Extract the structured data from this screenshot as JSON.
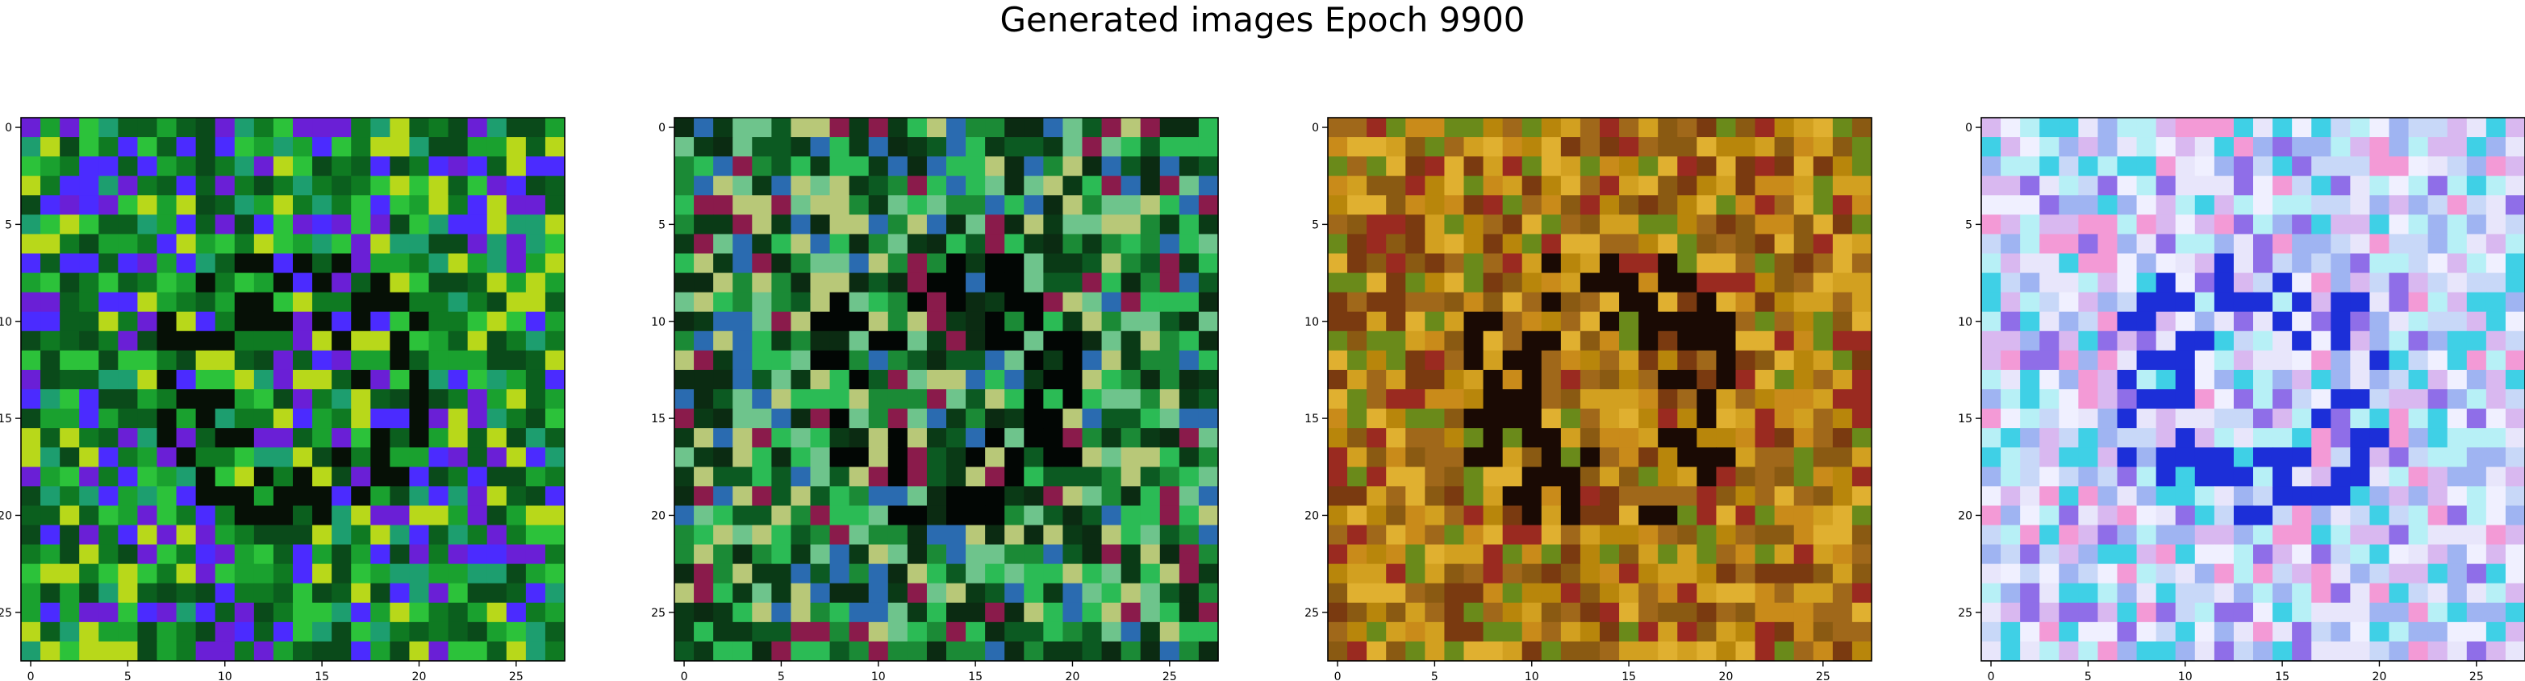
{
  "title": "Generated images Epoch 9900",
  "grid": {
    "rows": 28,
    "cols": 28
  },
  "x_ticks": [
    "0",
    "5",
    "10",
    "15",
    "20",
    "25"
  ],
  "y_ticks": [
    "0",
    "5",
    "10",
    "15",
    "20",
    "25"
  ],
  "panels": [
    {
      "name": "generated-image-1",
      "palette": [
        "#0f7a22",
        "#1aa12f",
        "#0b5f1e",
        "#2cc23a",
        "#0a4a1a",
        "#4b2bff",
        "#6a1fd6",
        "#1d9e6f",
        "#b8d81a"
      ],
      "dark": "#061006"
    },
    {
      "name": "generated-image-2",
      "palette": [
        "#1b8a36",
        "#0c5a22",
        "#2bbb55",
        "#0a3a16",
        "#6ec48c",
        "#0b2b12",
        "#8a1b4b",
        "#2a6bb0",
        "#b8c878"
      ],
      "dark": "#020604"
    },
    {
      "name": "generated-image-3",
      "palette": [
        "#b8860b",
        "#c98b1a",
        "#8a5a12",
        "#a0681a",
        "#d2a020",
        "#7a3a10",
        "#6a8a1a",
        "#e0b030",
        "#9a2a20"
      ],
      "dark": "#1a0a04"
    },
    {
      "name": "generated-image-4",
      "palette": [
        "#e8e6fb",
        "#c8d8f8",
        "#d9b8f0",
        "#9fb4f2",
        "#b7f0f6",
        "#8f6ee8",
        "#f39ad6",
        "#3fd0e6",
        "#f0f0ff"
      ],
      "dark": "#1c2fd8"
    }
  ]
}
